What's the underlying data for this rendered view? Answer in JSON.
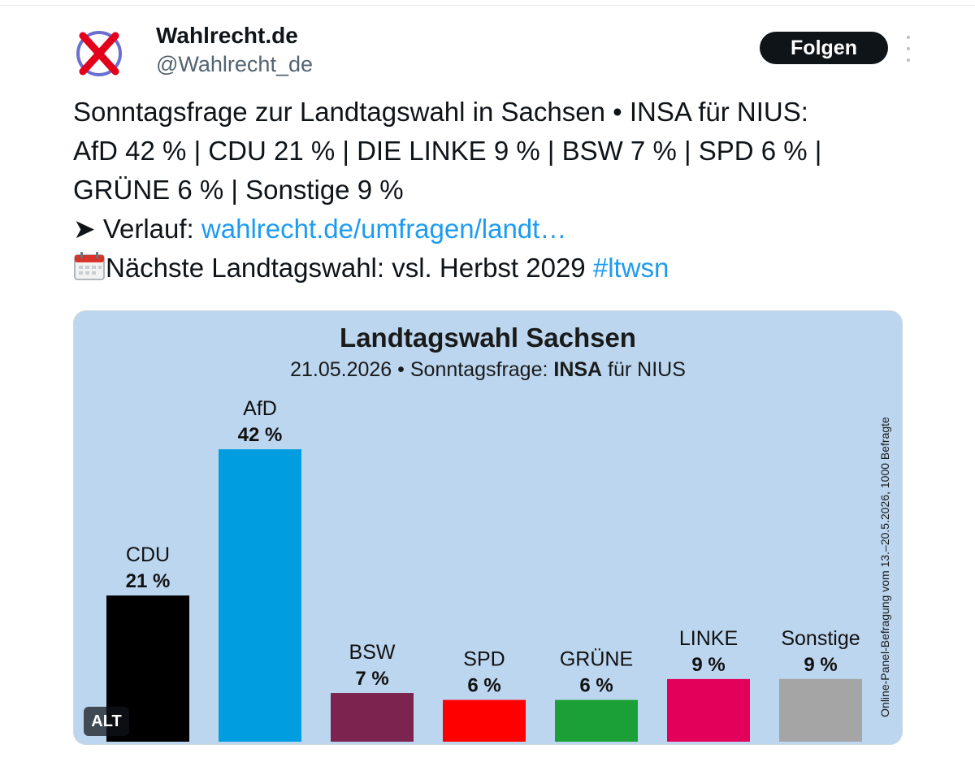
{
  "author": {
    "display_name": "Wahlrecht.de",
    "handle": "@Wahlrecht_de",
    "avatar_icon": "ballot-x-icon"
  },
  "follow_label": "Folgen",
  "tweet": {
    "line1": "Sonntagsfrage zur Landtagswahl in Sachsen • INSA für NIUS:",
    "line2": "AfD 42 % | CDU 21 % | DIE LINKE 9 % | BSW 7 % | SPD 6 % |",
    "line3": "GRÜNE 6 % | Sonstige 9 %",
    "verlauf_prefix": "➤ Verlauf: ",
    "verlauf_link": "wahlrecht.de/umfragen/landt…",
    "next_icon": "calendar-icon",
    "next_text": "Nächste Landtagswahl: vsl. Herbst 2029 ",
    "hashtag": "#ltwsn"
  },
  "chart_data": {
    "type": "bar",
    "title": "Landtagswahl Sachsen",
    "subtitle_prefix": "21.05.2026 • Sonntagsfrage: ",
    "subtitle_institute": "INSA",
    "subtitle_suffix": " für NIUS",
    "side_note": "Online-Panel-Befragung vom 13.–20.5.2026, 1000 Befragte",
    "categories": [
      "CDU",
      "AfD",
      "BSW",
      "SPD",
      "GRÜNE",
      "LINKE",
      "Sonstige"
    ],
    "values": [
      21,
      42,
      7,
      6,
      6,
      9,
      9
    ],
    "value_labels": [
      "21 %",
      "42 %",
      "7 %",
      "6 %",
      "6 %",
      "9 %",
      "9 %"
    ],
    "colors": [
      "#000000",
      "#009ee0",
      "#7b2450",
      "#ff0000",
      "#1aa037",
      "#e3005b",
      "#a5a5a5"
    ],
    "background": "#bcd6ef"
  },
  "alt_label": "ALT"
}
